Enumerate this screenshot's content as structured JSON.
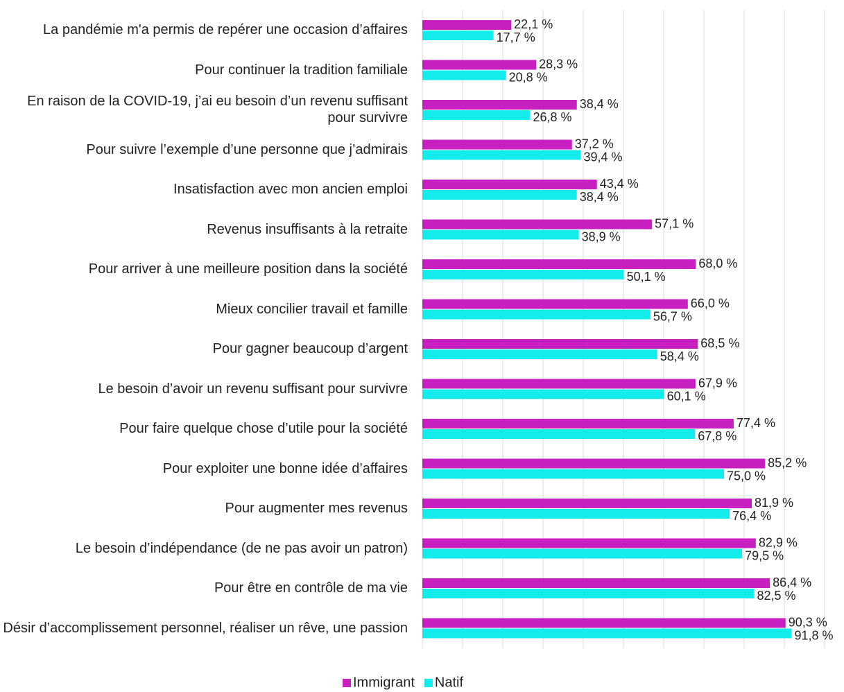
{
  "chart_data": {
    "type": "hbar",
    "categories": [
      "La pandémie m'a permis de repérer une occasion d’affaires",
      "Pour continuer la tradition familiale",
      "En raison de la COVID-19, j’ai eu besoin d’un revenu suffisant pour survivre",
      "Pour suivre l’exemple d’une personne que j’admirais",
      "Insatisfaction avec mon ancien emploi",
      "Revenus insuffisants à la retraite",
      "Pour arriver à une meilleure position dans la société",
      "Mieux concilier travail et famille",
      "Pour gagner beaucoup d’argent",
      "Le besoin d’avoir un revenu suffisant pour survivre",
      "Pour faire quelque chose d’utile pour la société",
      "Pour exploiter une bonne idée d’affaires",
      "Pour augmenter mes revenus",
      "Le besoin d’indépendance (de ne pas avoir un patron)",
      "Pour être en contrôle de ma vie",
      "Désir d’accomplissement personnel, réaliser un rêve, une passion"
    ],
    "series": [
      {
        "name": "Immigrant",
        "color": "#c71fc0",
        "values": [
          22.1,
          28.3,
          38.4,
          37.2,
          43.4,
          57.1,
          68.0,
          66.0,
          68.5,
          67.9,
          77.4,
          85.2,
          81.9,
          82.9,
          86.4,
          90.3
        ],
        "value_labels": [
          "22,1 %",
          "28,3 %",
          "38,4 %",
          "37,2 %",
          "43,4 %",
          "57,1 %",
          "68,0 %",
          "66,0 %",
          "68,5 %",
          "67,9 %",
          "77,4 %",
          "85,2 %",
          "81,9 %",
          "82,9 %",
          "86,4 %",
          "90,3 %"
        ]
      },
      {
        "name": "Natif",
        "color": "#14ecec",
        "values": [
          17.7,
          20.8,
          26.8,
          39.4,
          38.4,
          38.9,
          50.1,
          56.7,
          58.4,
          60.1,
          67.8,
          75.0,
          76.4,
          79.5,
          82.5,
          91.8
        ],
        "value_labels": [
          "17,7 %",
          "20,8 %",
          "26,8 %",
          "39,4 %",
          "38,4 %",
          "38,9 %",
          "50,1 %",
          "56,7 %",
          "58,4 %",
          "60,1 %",
          "67,8 %",
          "75,0 %",
          "76,4 %",
          "79,5 %",
          "82,5 %",
          "91,8 %"
        ]
      }
    ],
    "xlim": [
      0,
      100
    ],
    "xticks": [
      0,
      10,
      20,
      30,
      40,
      50,
      60,
      70,
      80,
      90,
      100
    ],
    "grid": true,
    "legend": "bottom"
  }
}
